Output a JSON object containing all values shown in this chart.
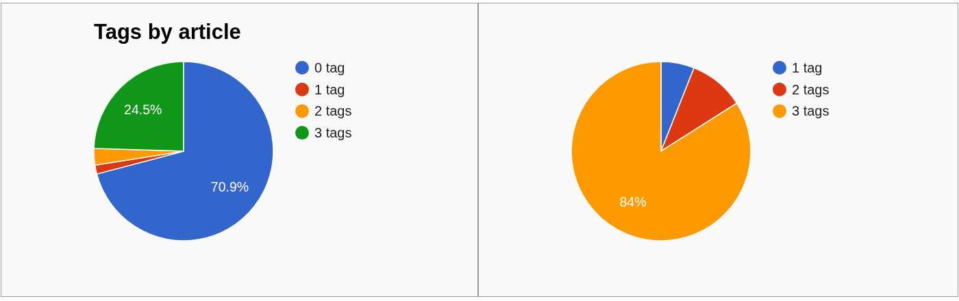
{
  "chart_data": [
    {
      "type": "pie",
      "title": "Tags by article",
      "categories": [
        "0 tag",
        "1 tag",
        "2 tags",
        "3 tags"
      ],
      "values": [
        70.9,
        1.6,
        3.0,
        24.5
      ],
      "value_labels": [
        "70.9%",
        null,
        null,
        "24.5%"
      ],
      "colors": [
        "#3366cc",
        "#dc3912",
        "#ff9900",
        "#109618"
      ],
      "legend": "right"
    },
    {
      "type": "pie",
      "categories": [
        "1 tag",
        "2 tags",
        "3 tags"
      ],
      "values": [
        6,
        10,
        84
      ],
      "value_labels": [
        null,
        null,
        "84%"
      ],
      "colors": [
        "#3366cc",
        "#dc3912",
        "#ff9900"
      ],
      "legend": "right"
    }
  ]
}
